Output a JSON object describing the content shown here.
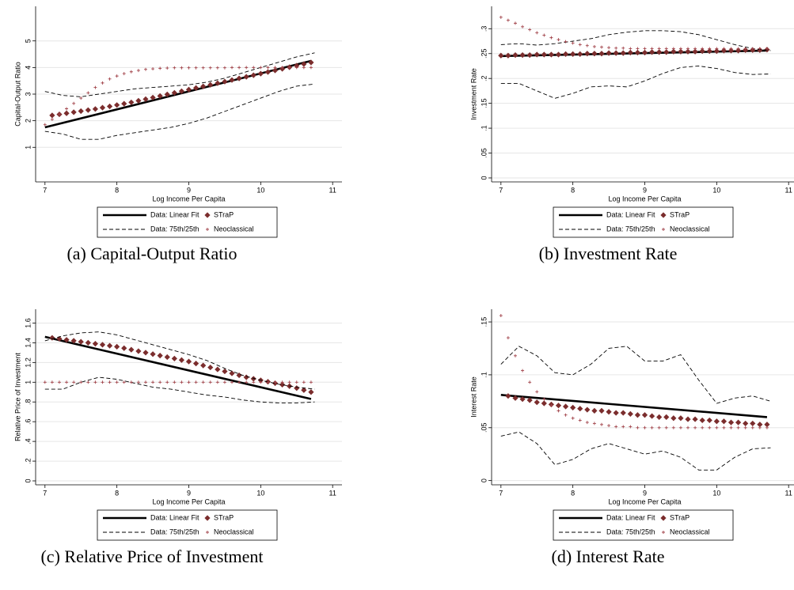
{
  "chart_data": [
    {
      "type": "line",
      "caption": "(a) Capital-Output Ratio",
      "xlabel": "Log Income Per Capita",
      "ylabel": "Capital-Output Ratio",
      "xlim": [
        6.87,
        11.13
      ],
      "xticks": [
        7,
        8,
        9,
        10,
        11
      ],
      "ylim": [
        -0.3,
        6.3
      ],
      "yticks": [
        1,
        2,
        3,
        4,
        5
      ],
      "grid": true,
      "x": [
        7,
        7.1,
        7.2,
        7.3,
        7.4,
        7.5,
        7.6,
        7.7,
        7.8,
        7.9,
        8,
        8.1,
        8.2,
        8.3,
        8.4,
        8.5,
        8.6,
        8.7,
        8.8,
        8.9,
        9,
        9.1,
        9.2,
        9.3,
        9.4,
        9.5,
        9.6,
        9.7,
        9.8,
        9.9,
        10,
        10.1,
        10.2,
        10.3,
        10.4,
        10.5,
        10.6,
        10.7
      ],
      "series": [
        {
          "name": "Data: Linear Fit",
          "color": "#000000",
          "style": "solid",
          "x": [
            7,
            10.7
          ],
          "values": [
            1.75,
            4.25
          ]
        },
        {
          "name": "STraP",
          "color": "#7b2d2d",
          "marker": "diamond",
          "values": [
            null,
            2.2,
            2.24,
            2.28,
            2.32,
            2.36,
            2.4,
            2.44,
            2.49,
            2.54,
            2.59,
            2.64,
            2.69,
            2.75,
            2.81,
            2.87,
            2.93,
            2.99,
            3.05,
            3.11,
            3.17,
            3.23,
            3.29,
            3.35,
            3.41,
            3.47,
            3.53,
            3.59,
            3.65,
            3.71,
            3.77,
            3.83,
            3.89,
            3.95,
            4.01,
            4.07,
            4.13,
            4.19
          ]
        },
        {
          "name": "Data: 75th/25th",
          "color": "#000000",
          "style": "dashed",
          "x": [
            7,
            7.25,
            7.5,
            7.75,
            8,
            8.25,
            8.5,
            8.75,
            9,
            9.25,
            9.5,
            9.75,
            10,
            10.25,
            10.5,
            10.75
          ],
          "values": [
            3.1,
            2.95,
            2.9,
            3.0,
            3.1,
            3.2,
            3.25,
            3.3,
            3.35,
            3.45,
            3.6,
            3.8,
            4.0,
            4.2,
            4.4,
            4.55
          ],
          "lower": [
            1.6,
            1.5,
            1.3,
            1.3,
            1.45,
            1.55,
            1.65,
            1.75,
            1.9,
            2.1,
            2.35,
            2.6,
            2.85,
            3.1,
            3.3,
            3.38
          ]
        },
        {
          "name": "Neoclassical",
          "color": "#a3454c",
          "marker": "plus",
          "values": [
            1.85,
            2.05,
            2.25,
            2.45,
            2.65,
            2.85,
            3.05,
            3.25,
            3.42,
            3.57,
            3.68,
            3.77,
            3.84,
            3.89,
            3.93,
            3.95,
            3.97,
            3.98,
            3.99,
            3.99,
            3.99,
            3.99,
            3.99,
            3.99,
            3.99,
            3.99,
            4,
            4,
            4,
            4,
            4,
            4,
            4,
            4,
            4,
            4,
            4,
            4
          ]
        }
      ]
    },
    {
      "type": "line",
      "caption": "(b) Investment Rate",
      "xlabel": "Log Income Per Capita",
      "ylabel": "Investment Rate",
      "xlim": [
        6.87,
        11.13
      ],
      "xticks": [
        7,
        8,
        9,
        10,
        11
      ],
      "ylim": [
        -0.008,
        0.345
      ],
      "yticks": [
        0,
        {
          "value": 0.05,
          "label": ".05"
        },
        {
          "value": 0.1,
          "label": ".1"
        },
        {
          "value": 0.15,
          "label": ".15"
        },
        {
          "value": 0.2,
          "label": ".2"
        },
        {
          "value": 0.25,
          "label": ".25"
        },
        {
          "value": 0.3,
          "label": ".3"
        }
      ],
      "grid": true,
      "x": [
        7,
        7.1,
        7.2,
        7.3,
        7.4,
        7.5,
        7.6,
        7.7,
        7.8,
        7.9,
        8,
        8.1,
        8.2,
        8.3,
        8.4,
        8.5,
        8.6,
        8.7,
        8.8,
        8.9,
        9,
        9.1,
        9.2,
        9.3,
        9.4,
        9.5,
        9.6,
        9.7,
        9.8,
        9.9,
        10,
        10.1,
        10.2,
        10.3,
        10.4,
        10.5,
        10.6,
        10.7
      ],
      "series": [
        {
          "name": "Data: Linear Fit",
          "color": "#000000",
          "style": "solid",
          "x": [
            7,
            10.7
          ],
          "values": [
            0.245,
            0.256
          ]
        },
        {
          "name": "STraP",
          "color": "#7b2d2d",
          "marker": "diamond",
          "values": [
            0.246,
            0.246,
            0.247,
            0.247,
            0.247,
            0.248,
            0.248,
            0.248,
            0.248,
            0.249,
            0.249,
            0.249,
            0.25,
            0.25,
            0.25,
            0.251,
            0.251,
            0.251,
            0.252,
            0.252,
            0.252,
            0.253,
            0.253,
            0.253,
            0.254,
            0.254,
            0.254,
            0.254,
            0.255,
            0.255,
            0.255,
            0.256,
            0.256,
            0.256,
            0.257,
            0.257,
            0.257,
            0.258
          ]
        },
        {
          "name": "Data: 75th/25th",
          "color": "#000000",
          "style": "dashed",
          "x": [
            7,
            7.25,
            7.5,
            7.75,
            8,
            8.25,
            8.5,
            8.75,
            9,
            9.25,
            9.5,
            9.75,
            10,
            10.25,
            10.5,
            10.75
          ],
          "values": [
            0.268,
            0.27,
            0.267,
            0.27,
            0.275,
            0.28,
            0.288,
            0.293,
            0.296,
            0.296,
            0.294,
            0.288,
            0.278,
            0.268,
            0.26,
            0.256
          ],
          "lower": [
            0.19,
            0.19,
            0.175,
            0.16,
            0.17,
            0.183,
            0.185,
            0.183,
            0.195,
            0.21,
            0.222,
            0.225,
            0.22,
            0.212,
            0.208,
            0.209
          ]
        },
        {
          "name": "Neoclassical",
          "color": "#a3454c",
          "marker": "plus",
          "values": [
            0.323,
            0.317,
            0.311,
            0.304,
            0.298,
            0.292,
            0.287,
            0.282,
            0.278,
            0.274,
            0.271,
            0.268,
            0.266,
            0.264,
            0.263,
            0.262,
            0.261,
            0.261,
            0.26,
            0.26,
            0.26,
            0.26,
            0.26,
            0.26,
            0.26,
            0.26,
            0.26,
            0.26,
            0.26,
            0.26,
            0.26,
            0.26,
            0.26,
            0.26,
            0.26,
            0.26,
            0.26,
            0.26
          ]
        }
      ]
    },
    {
      "type": "line",
      "caption": "(c) Relative Price of Investment",
      "xlabel": "Log Income Per Capita",
      "ylabel": "Relative Price of Investment",
      "xlim": [
        6.87,
        11.13
      ],
      "xticks": [
        7,
        8,
        9,
        10,
        11
      ],
      "ylim": [
        -0.04,
        1.74
      ],
      "yticks": [
        0,
        {
          "value": 0.2,
          "label": ".2"
        },
        {
          "value": 0.4,
          "label": ".4"
        },
        {
          "value": 0.6,
          "label": ".6"
        },
        {
          "value": 0.8,
          "label": ".8"
        },
        1,
        1.2,
        1.4,
        1.6
      ],
      "grid": true,
      "x": [
        7,
        7.1,
        7.2,
        7.3,
        7.4,
        7.5,
        7.6,
        7.7,
        7.8,
        7.9,
        8,
        8.1,
        8.2,
        8.3,
        8.4,
        8.5,
        8.6,
        8.7,
        8.8,
        8.9,
        9,
        9.1,
        9.2,
        9.3,
        9.4,
        9.5,
        9.6,
        9.7,
        9.8,
        9.9,
        10,
        10.1,
        10.2,
        10.3,
        10.4,
        10.5,
        10.6,
        10.7
      ],
      "series": [
        {
          "name": "Data: Linear Fit",
          "color": "#000000",
          "style": "solid",
          "x": [
            7,
            10.7
          ],
          "values": [
            1.46,
            0.83
          ]
        },
        {
          "name": "STraP",
          "color": "#7b2d2d",
          "marker": "diamond",
          "values": [
            null,
            1.45,
            1.44,
            1.43,
            1.42,
            1.41,
            1.4,
            1.39,
            1.38,
            1.37,
            1.36,
            1.345,
            1.33,
            1.315,
            1.3,
            1.285,
            1.27,
            1.255,
            1.24,
            1.225,
            1.21,
            1.19,
            1.17,
            1.15,
            1.13,
            1.11,
            1.09,
            1.07,
            1.05,
            1.035,
            1.02,
            1.005,
            0.99,
            0.975,
            0.96,
            0.94,
            0.92,
            0.9
          ]
        },
        {
          "name": "Data: 75th/25th",
          "color": "#000000",
          "style": "dashed",
          "x": [
            7,
            7.25,
            7.5,
            7.75,
            8,
            8.25,
            8.5,
            8.75,
            9,
            9.25,
            9.5,
            9.75,
            10,
            10.25,
            10.5,
            10.75
          ],
          "values": [
            1.42,
            1.47,
            1.5,
            1.51,
            1.48,
            1.43,
            1.38,
            1.33,
            1.28,
            1.22,
            1.14,
            1.07,
            1.02,
            0.98,
            0.95,
            0.93
          ],
          "lower": [
            0.93,
            0.93,
            1.0,
            1.05,
            1.03,
            0.99,
            0.95,
            0.93,
            0.9,
            0.87,
            0.85,
            0.82,
            0.8,
            0.79,
            0.79,
            0.8
          ]
        },
        {
          "name": "Neoclassical",
          "color": "#a3454c",
          "marker": "plus",
          "values": [
            1,
            1,
            1,
            1,
            1,
            1,
            1,
            1,
            1,
            1,
            1,
            1,
            1,
            1,
            1,
            1,
            1,
            1,
            1,
            1,
            1,
            1,
            1,
            1,
            1,
            1,
            1,
            1,
            1,
            1,
            1,
            1,
            1,
            1,
            1,
            1,
            1,
            1
          ]
        }
      ]
    },
    {
      "type": "line",
      "caption": "(d) Interest Rate",
      "xlabel": "Log Income Per Capita",
      "ylabel": "Interest Rate",
      "xlim": [
        6.87,
        11.13
      ],
      "xticks": [
        7,
        8,
        9,
        10,
        11
      ],
      "ylim": [
        -0.004,
        0.162
      ],
      "yticks": [
        0,
        {
          "value": 0.05,
          "label": ".05"
        },
        {
          "value": 0.1,
          "label": ".1"
        },
        {
          "value": 0.15,
          "label": ".15"
        }
      ],
      "grid": true,
      "x": [
        7,
        7.1,
        7.2,
        7.3,
        7.4,
        7.5,
        7.6,
        7.7,
        7.8,
        7.9,
        8,
        8.1,
        8.2,
        8.3,
        8.4,
        8.5,
        8.6,
        8.7,
        8.8,
        8.9,
        9,
        9.1,
        9.2,
        9.3,
        9.4,
        9.5,
        9.6,
        9.7,
        9.8,
        9.9,
        10,
        10.1,
        10.2,
        10.3,
        10.4,
        10.5,
        10.6,
        10.7
      ],
      "series": [
        {
          "name": "Data: Linear Fit",
          "color": "#000000",
          "style": "solid",
          "x": [
            7,
            10.7
          ],
          "values": [
            0.081,
            0.06
          ]
        },
        {
          "name": "STraP",
          "color": "#7b2d2d",
          "marker": "diamond",
          "values": [
            null,
            0.08,
            0.078,
            0.077,
            0.076,
            0.074,
            0.073,
            0.072,
            0.071,
            0.07,
            0.069,
            0.068,
            0.067,
            0.066,
            0.066,
            0.065,
            0.064,
            0.064,
            0.063,
            0.062,
            0.062,
            0.061,
            0.06,
            0.06,
            0.059,
            0.059,
            0.058,
            0.058,
            0.057,
            0.057,
            0.056,
            0.056,
            0.055,
            0.055,
            0.054,
            0.054,
            0.053,
            0.053
          ]
        },
        {
          "name": "Data: 75th/25th",
          "color": "#000000",
          "style": "dashed",
          "x": [
            7,
            7.25,
            7.5,
            7.75,
            8,
            8.25,
            8.5,
            8.75,
            9,
            9.25,
            9.5,
            9.75,
            10,
            10.25,
            10.5,
            10.75
          ],
          "values": [
            0.11,
            0.127,
            0.118,
            0.102,
            0.1,
            0.11,
            0.125,
            0.127,
            0.113,
            0.113,
            0.119,
            0.095,
            0.073,
            0.078,
            0.08,
            0.075
          ],
          "lower": [
            0.042,
            0.046,
            0.035,
            0.015,
            0.02,
            0.03,
            0.035,
            0.03,
            0.025,
            0.028,
            0.022,
            0.01,
            0.01,
            0.022,
            0.03,
            0.031
          ]
        },
        {
          "name": "Neoclassical",
          "color": "#a3454c",
          "marker": "plus",
          "values": [
            0.156,
            0.135,
            0.118,
            0.104,
            0.093,
            0.084,
            0.077,
            0.071,
            0.066,
            0.062,
            0.059,
            0.057,
            0.055,
            0.054,
            0.053,
            0.052,
            0.051,
            0.051,
            0.051,
            0.05,
            0.05,
            0.05,
            0.05,
            0.05,
            0.05,
            0.05,
            0.05,
            0.05,
            0.05,
            0.05,
            0.05,
            0.05,
            0.05,
            0.05,
            0.05,
            0.05,
            0.05,
            0.05
          ]
        }
      ]
    }
  ]
}
